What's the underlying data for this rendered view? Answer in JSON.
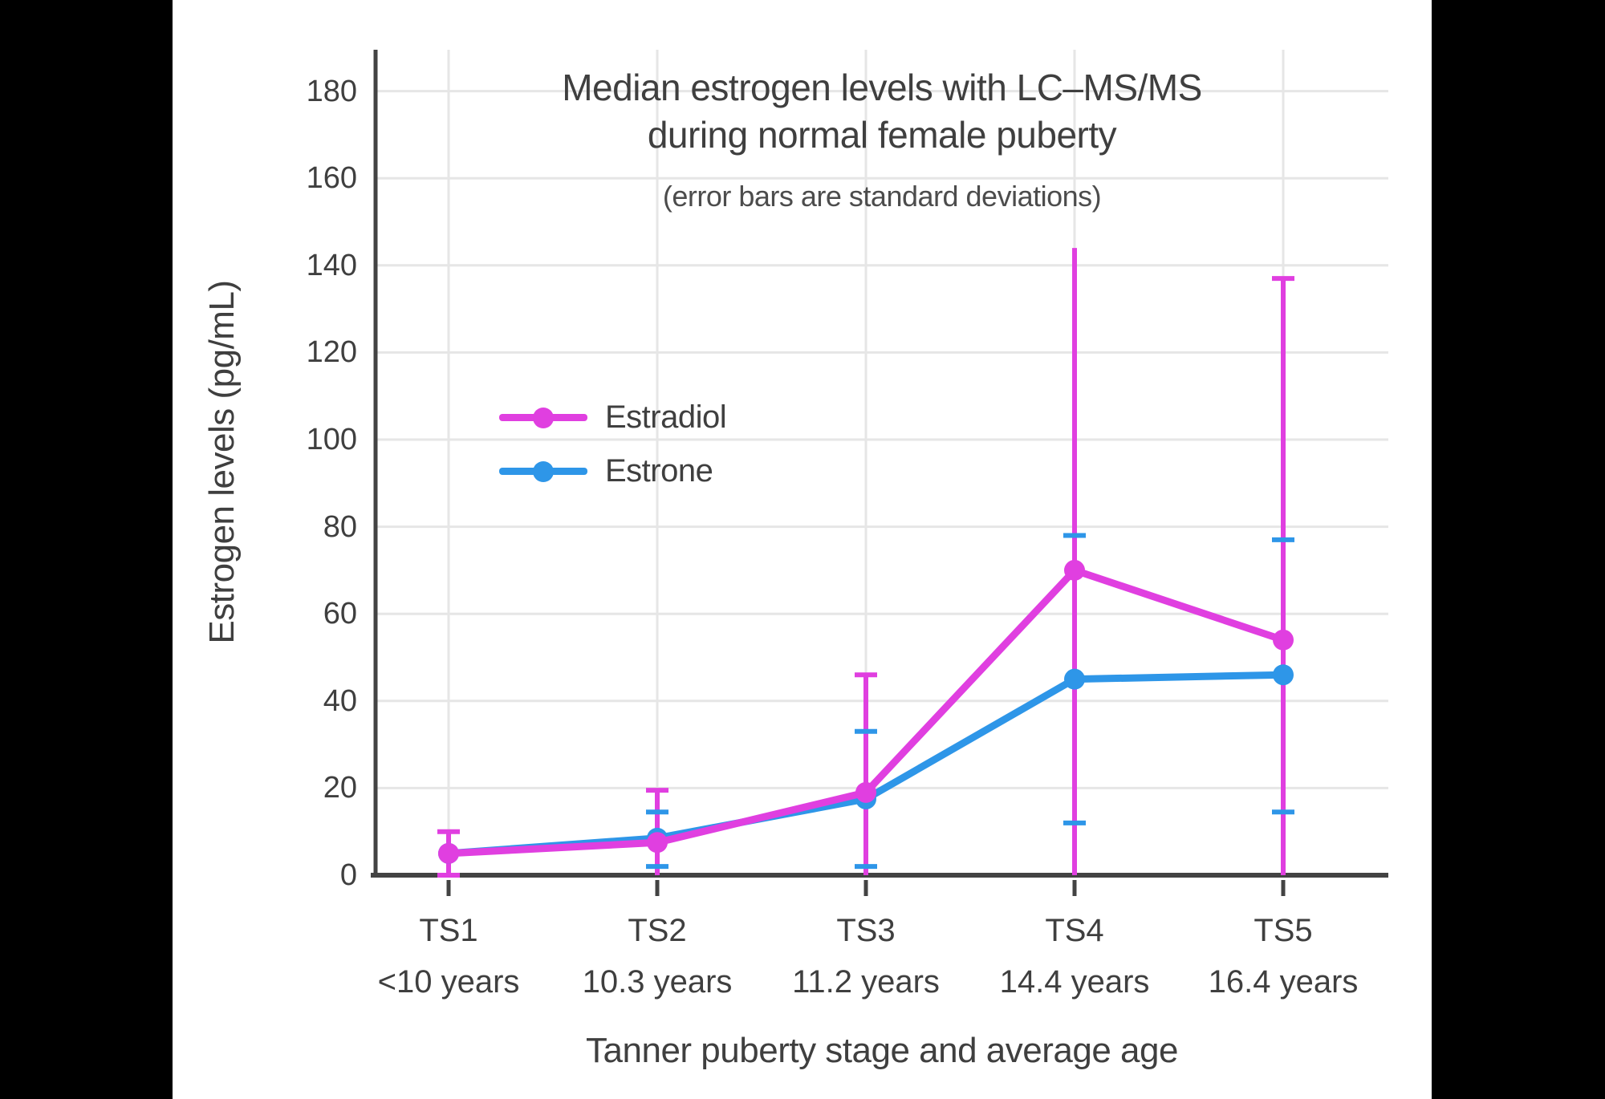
{
  "frame": {
    "background": "#000000",
    "panel_background": "#ffffff"
  },
  "colors": {
    "text": "#3f3f3f",
    "subtitle_text": "#4c4c4c",
    "axis": "#434343",
    "grid": "#e6e6e6",
    "estradiol": "#e03fe0",
    "estrone": "#2e96e8"
  },
  "chart_data": {
    "type": "line",
    "title": "Median estrogen levels with LC–MS/MS during normal female puberty",
    "title_lines": [
      "Median estrogen levels with LC–MS/MS",
      "during normal female puberty"
    ],
    "subtitle": "(error bars are standard deviations)",
    "xlabel": "Tanner puberty stage and average age",
    "ylabel": "Estrogen levels (pg/mL)",
    "categories": [
      {
        "stage": "TS1",
        "age": "<10 years"
      },
      {
        "stage": "TS2",
        "age": "10.3 years"
      },
      {
        "stage": "TS3",
        "age": "11.2 years"
      },
      {
        "stage": "TS4",
        "age": "14.4 years"
      },
      {
        "stage": "TS5",
        "age": "16.4 years"
      }
    ],
    "y_ticks": [
      0,
      20,
      40,
      60,
      80,
      100,
      120,
      140,
      160,
      180
    ],
    "ylim": [
      0,
      190
    ],
    "grid": true,
    "legend_position": "inside-upper-left",
    "series": [
      {
        "name": "Estradiol",
        "color": "#e03fe0",
        "values": [
          5,
          7.5,
          19,
          70,
          54
        ],
        "error_bars": [
          {
            "low": 0,
            "high": 10,
            "low_cap": true,
            "high_cap": true
          },
          {
            "low": 0,
            "high": 19.5,
            "low_cap": false,
            "high_cap": true
          },
          {
            "low": 0,
            "high": 46,
            "low_cap": false,
            "high_cap": true
          },
          {
            "low": 0,
            "high": 144,
            "low_cap": false,
            "high_cap": false
          },
          {
            "low": 0,
            "high": 137,
            "low_cap": false,
            "high_cap": true
          }
        ]
      },
      {
        "name": "Estrone",
        "color": "#2e96e8",
        "values": [
          5,
          8.5,
          17.5,
          45,
          46
        ],
        "error_bars": [
          null,
          {
            "low": 2,
            "high": 14.5,
            "low_cap": true,
            "high_cap": true
          },
          {
            "low": 2,
            "high": 33,
            "low_cap": true,
            "high_cap": true
          },
          {
            "low": 12,
            "high": 78,
            "low_cap": true,
            "high_cap": true
          },
          {
            "low": 14.5,
            "high": 77,
            "low_cap": true,
            "high_cap": true
          }
        ]
      }
    ]
  }
}
